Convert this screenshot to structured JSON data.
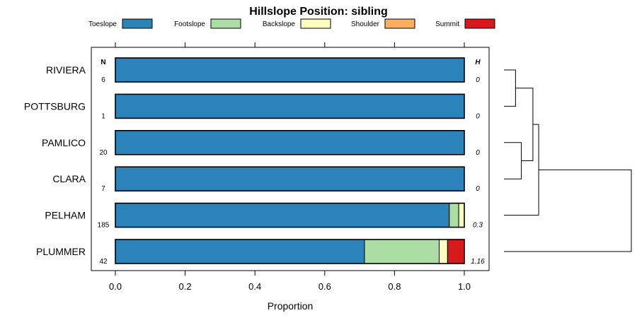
{
  "chart_data": {
    "type": "bar",
    "orientation": "horizontal",
    "stacked": true,
    "title": "Hillslope Position: sibling",
    "xlabel": "Proportion",
    "ylabel": "",
    "xlim": [
      0,
      1
    ],
    "x_ticks": [
      0,
      0.2,
      0.4,
      0.6,
      0.8,
      1
    ],
    "x_tick_labels": [
      "0.0",
      "0.2",
      "0.4",
      "0.6",
      "0.8",
      "1.0"
    ],
    "n_header": "N",
    "h_header": "H",
    "legend_position": "top",
    "categories": [
      "RIVIERA",
      "POTTSBURG",
      "PAMLICO",
      "CLARA",
      "PELHAM",
      "PLUMMER"
    ],
    "n": [
      "6",
      "1",
      "20",
      "7",
      "185",
      "42"
    ],
    "h": [
      "0",
      "0",
      "0",
      "0",
      "0.3",
      "1.16"
    ],
    "series": [
      {
        "name": "Toeslope",
        "color": "#2B83BA",
        "values": [
          1,
          1,
          1,
          1,
          0.957,
          0.714
        ]
      },
      {
        "name": "Footslope",
        "color": "#ABDDA4",
        "values": [
          0,
          0,
          0,
          0,
          0.027,
          0.214
        ]
      },
      {
        "name": "Backslope",
        "color": "#FFFFBF",
        "values": [
          0,
          0,
          0,
          0,
          0.016,
          0.024
        ]
      },
      {
        "name": "Shoulder",
        "color": "#FDAE61",
        "values": [
          0,
          0,
          0,
          0,
          0,
          0
        ]
      },
      {
        "name": "Summit",
        "color": "#D7191C",
        "values": [
          0,
          0,
          0,
          0,
          0,
          0.048
        ]
      }
    ],
    "dendrogram": {
      "leaves": [
        "RIVIERA",
        "POTTSBURG",
        "PAMLICO",
        "CLARA",
        "PELHAM",
        "PLUMMER"
      ],
      "merges": [
        {
          "left": "RIVIERA",
          "right": "POTTSBURG",
          "height": 0.02
        },
        {
          "left": "PAMLICO",
          "right": "CLARA",
          "height": 0.03
        },
        {
          "left": "m0",
          "right": "m1",
          "height": 0.05
        },
        {
          "left": "m2",
          "right": "PELHAM",
          "height": 0.06
        },
        {
          "left": "m3",
          "right": "PLUMMER",
          "height": 0.22
        }
      ],
      "max_height": 0.22
    }
  }
}
